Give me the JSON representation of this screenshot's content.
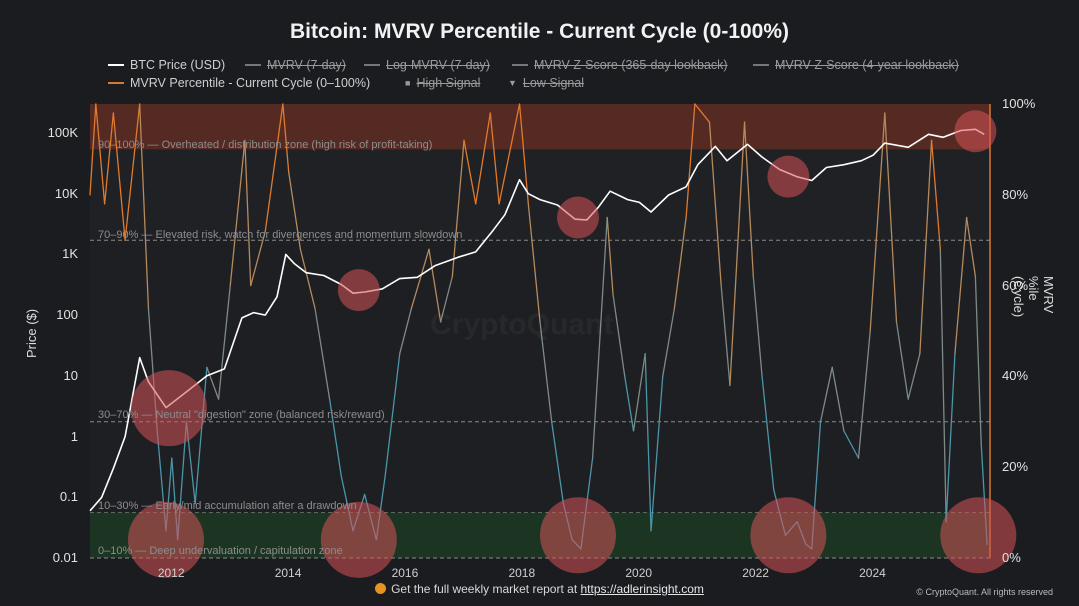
{
  "chart_data": {
    "type": "line",
    "title": "Bitcoin: MVRV Percentile - Current Cycle (0-100%)",
    "ylabel_left": "Price ($)",
    "ylabel_right": "MVRV %ile (Cycle)",
    "y_left_scale": "log",
    "y_left_range": [
      0.01,
      300000
    ],
    "y_left_ticks": [
      "0.01",
      "0.1",
      "1",
      "10",
      "100",
      "1K",
      "10K",
      "100K"
    ],
    "y_right_range": [
      0,
      100
    ],
    "y_right_ticks": [
      "0%",
      "20%",
      "40%",
      "60%",
      "80%",
      "100%"
    ],
    "x_range": [
      2010.6,
      2026.0
    ],
    "x_ticks": [
      "2012",
      "2014",
      "2016",
      "2018",
      "2020",
      "2022",
      "2024"
    ],
    "legend": [
      {
        "label": "BTC Price (USD)",
        "color": "#ffffff",
        "active": true
      },
      {
        "label": "MVRV (7-day)",
        "color": "#777777",
        "active": false
      },
      {
        "label": "Log-MVRV (7-day)",
        "color": "#777777",
        "active": false
      },
      {
        "label": "MVRV Z-Score (365-day lookback)",
        "color": "#777777",
        "active": false
      },
      {
        "label": "MVRV Z-Score (4-year lookback)",
        "color": "#777777",
        "active": false
      },
      {
        "label": "MVRV Percentile - Current Cycle (0–100%)",
        "color": "#d9782e",
        "active": true
      },
      {
        "label": "High Signal",
        "marker": "square",
        "active": false
      },
      {
        "label": "Low Signal",
        "marker": "triangle",
        "active": false
      }
    ],
    "zones": [
      {
        "range": [
          90,
          100
        ],
        "label": "90–100% — Overheated / distribution zone (high risk of profit-taking)",
        "color": "#8b3a2a"
      },
      {
        "range": [
          70,
          90
        ],
        "label": "70–90% — Elevated risk, watch for divergences and momentum slowdown"
      },
      {
        "range": [
          30,
          70
        ],
        "label": "30–70% — Neutral \"digestion\" zone (balanced risk/reward)"
      },
      {
        "range": [
          10,
          30
        ],
        "label": "10–30% — Early/mid accumulation after a drawdown"
      },
      {
        "range": [
          0,
          10
        ],
        "label": "0–10% — Deep undervaluation / capitulation zone",
        "color": "#1f3b27"
      }
    ],
    "series": [
      {
        "name": "BTC Price (USD)",
        "points": [
          [
            2010.6,
            0.06
          ],
          [
            2010.8,
            0.1
          ],
          [
            2011.0,
            0.3
          ],
          [
            2011.2,
            1
          ],
          [
            2011.45,
            20
          ],
          [
            2011.6,
            8
          ],
          [
            2011.9,
            3
          ],
          [
            2012.2,
            5
          ],
          [
            2012.6,
            10
          ],
          [
            2012.9,
            13
          ],
          [
            2013.2,
            90
          ],
          [
            2013.4,
            110
          ],
          [
            2013.6,
            100
          ],
          [
            2013.8,
            200
          ],
          [
            2013.95,
            1000
          ],
          [
            2014.1,
            700
          ],
          [
            2014.3,
            500
          ],
          [
            2014.6,
            450
          ],
          [
            2014.9,
            320
          ],
          [
            2015.1,
            230
          ],
          [
            2015.3,
            240
          ],
          [
            2015.6,
            270
          ],
          [
            2015.9,
            400
          ],
          [
            2016.2,
            420
          ],
          [
            2016.5,
            650
          ],
          [
            2016.9,
            900
          ],
          [
            2017.2,
            1100
          ],
          [
            2017.5,
            2500
          ],
          [
            2017.7,
            4500
          ],
          [
            2017.95,
            17000
          ],
          [
            2018.1,
            10000
          ],
          [
            2018.3,
            8000
          ],
          [
            2018.6,
            6500
          ],
          [
            2018.9,
            3800
          ],
          [
            2019.1,
            3700
          ],
          [
            2019.3,
            6000
          ],
          [
            2019.5,
            11000
          ],
          [
            2019.8,
            8000
          ],
          [
            2020.0,
            7200
          ],
          [
            2020.2,
            5000
          ],
          [
            2020.5,
            9500
          ],
          [
            2020.8,
            13000
          ],
          [
            2021.0,
            30000
          ],
          [
            2021.3,
            60000
          ],
          [
            2021.5,
            35000
          ],
          [
            2021.85,
            65000
          ],
          [
            2022.1,
            40000
          ],
          [
            2022.4,
            25000
          ],
          [
            2022.7,
            19000
          ],
          [
            2022.95,
            16500
          ],
          [
            2023.2,
            27000
          ],
          [
            2023.5,
            30000
          ],
          [
            2023.8,
            35000
          ],
          [
            2024.0,
            43000
          ],
          [
            2024.2,
            68000
          ],
          [
            2024.6,
            58000
          ],
          [
            2024.95,
            95000
          ],
          [
            2025.2,
            85000
          ],
          [
            2025.5,
            110000
          ],
          [
            2025.75,
            115000
          ],
          [
            2025.9,
            95000
          ]
        ]
      },
      {
        "name": "MVRV Percentile - Current Cycle (0–100%)",
        "points": [
          [
            2010.6,
            80
          ],
          [
            2010.7,
            100
          ],
          [
            2010.85,
            78
          ],
          [
            2011.0,
            98
          ],
          [
            2011.2,
            70
          ],
          [
            2011.45,
            100
          ],
          [
            2011.6,
            55
          ],
          [
            2011.75,
            28
          ],
          [
            2011.9,
            6
          ],
          [
            2012.0,
            22
          ],
          [
            2012.1,
            4
          ],
          [
            2012.25,
            30
          ],
          [
            2012.4,
            12
          ],
          [
            2012.6,
            42
          ],
          [
            2012.8,
            35
          ],
          [
            2013.0,
            60
          ],
          [
            2013.25,
            92
          ],
          [
            2013.35,
            60
          ],
          [
            2013.6,
            72
          ],
          [
            2013.9,
            100
          ],
          [
            2014.0,
            85
          ],
          [
            2014.2,
            68
          ],
          [
            2014.45,
            55
          ],
          [
            2014.7,
            35
          ],
          [
            2014.9,
            18
          ],
          [
            2015.1,
            6
          ],
          [
            2015.3,
            14
          ],
          [
            2015.5,
            4
          ],
          [
            2015.65,
            18
          ],
          [
            2015.9,
            45
          ],
          [
            2016.1,
            55
          ],
          [
            2016.4,
            68
          ],
          [
            2016.6,
            52
          ],
          [
            2016.8,
            62
          ],
          [
            2017.0,
            92
          ],
          [
            2017.2,
            78
          ],
          [
            2017.45,
            98
          ],
          [
            2017.6,
            78
          ],
          [
            2017.95,
            100
          ],
          [
            2018.1,
            78
          ],
          [
            2018.3,
            52
          ],
          [
            2018.5,
            30
          ],
          [
            2018.7,
            12
          ],
          [
            2018.85,
            4
          ],
          [
            2019.0,
            2
          ],
          [
            2019.2,
            22
          ],
          [
            2019.45,
            75
          ],
          [
            2019.55,
            58
          ],
          [
            2019.75,
            40
          ],
          [
            2019.9,
            28
          ],
          [
            2020.1,
            45
          ],
          [
            2020.2,
            6
          ],
          [
            2020.4,
            40
          ],
          [
            2020.6,
            55
          ],
          [
            2020.8,
            75
          ],
          [
            2020.95,
            100
          ],
          [
            2021.2,
            96
          ],
          [
            2021.4,
            60
          ],
          [
            2021.55,
            38
          ],
          [
            2021.8,
            96
          ],
          [
            2021.95,
            62
          ],
          [
            2022.1,
            40
          ],
          [
            2022.3,
            15
          ],
          [
            2022.5,
            5
          ],
          [
            2022.7,
            8
          ],
          [
            2022.85,
            3
          ],
          [
            2022.95,
            2
          ],
          [
            2023.1,
            30
          ],
          [
            2023.3,
            42
          ],
          [
            2023.5,
            28
          ],
          [
            2023.75,
            22
          ],
          [
            2023.95,
            50
          ],
          [
            2024.2,
            98
          ],
          [
            2024.4,
            52
          ],
          [
            2024.6,
            35
          ],
          [
            2024.8,
            45
          ],
          [
            2025.0,
            92
          ],
          [
            2025.15,
            68
          ],
          [
            2025.25,
            8
          ],
          [
            2025.4,
            45
          ],
          [
            2025.6,
            75
          ],
          [
            2025.75,
            62
          ],
          [
            2025.85,
            25
          ],
          [
            2025.95,
            3
          ]
        ]
      }
    ],
    "highlight_circles": [
      {
        "x": 2011.95,
        "y_pct": 33,
        "kind": "low"
      },
      {
        "x": 2011.9,
        "y_pct": 4,
        "kind": "low"
      },
      {
        "x": 2015.2,
        "y_pct": 59,
        "kind": "price"
      },
      {
        "x": 2015.2,
        "y_pct": 4,
        "kind": "low"
      },
      {
        "x": 2018.95,
        "y_pct": 75,
        "kind": "price"
      },
      {
        "x": 2018.95,
        "y_pct": 5,
        "kind": "low"
      },
      {
        "x": 2022.55,
        "y_pct": 84,
        "kind": "price"
      },
      {
        "x": 2022.55,
        "y_pct": 5,
        "kind": "low"
      },
      {
        "x": 2025.75,
        "y_pct": 94,
        "kind": "high"
      },
      {
        "x": 2025.8,
        "y_pct": 5,
        "kind": "low"
      }
    ]
  },
  "watermark": "CryptoQuant",
  "footer": {
    "prefix": "Get the full weekly market report at",
    "link": "https://adlerinsight.com"
  },
  "credit": "© CryptoQuant. All rights reserved"
}
